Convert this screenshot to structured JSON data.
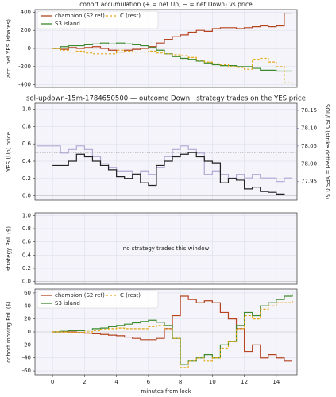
{
  "chart_data": [
    {
      "type": "line",
      "title": "cohort accumulation (+ = net Up, − = net Down) vs price",
      "ylabel": "acc. net YES (shares)",
      "ylim": [
        -430,
        430
      ],
      "yticks": [
        -400,
        -200,
        0,
        200,
        400
      ],
      "grid": true,
      "legend": "upper left",
      "x": [
        0,
        0.5,
        1,
        1.5,
        2,
        2.5,
        3,
        3.5,
        4,
        4.5,
        5,
        5.5,
        6,
        6.5,
        7,
        7.5,
        8,
        8.5,
        9,
        9.5,
        10,
        10.5,
        11,
        11.5,
        12,
        12.5,
        13,
        13.5,
        14,
        14.5,
        15
      ],
      "series": [
        {
          "name": "champion (S2 ref)",
          "color": "#b5441f",
          "linestyle": "solid",
          "values": [
            0,
            -10,
            10,
            0,
            10,
            20,
            0,
            -20,
            -40,
            -20,
            -10,
            0,
            20,
            60,
            100,
            130,
            150,
            180,
            200,
            190,
            220,
            230,
            230,
            220,
            230,
            240,
            250,
            240,
            250,
            390,
            390
          ]
        },
        {
          "name": "S3 island",
          "color": "#3d8a2e",
          "linestyle": "solid",
          "values": [
            0,
            20,
            30,
            30,
            40,
            50,
            60,
            50,
            60,
            50,
            40,
            30,
            10,
            -20,
            -60,
            -90,
            -110,
            -120,
            -140,
            -160,
            -180,
            -190,
            -190,
            -200,
            -200,
            -220,
            -240,
            -240,
            -250,
            -250,
            -250
          ]
        },
        {
          "name": "C (rest)",
          "color": "#e6a817",
          "linestyle": "dashed",
          "values": [
            0,
            -20,
            -40,
            -30,
            -50,
            -60,
            -60,
            -60,
            -20,
            -30,
            -40,
            -40,
            -30,
            -50,
            -60,
            -70,
            -80,
            -100,
            -130,
            -150,
            -170,
            -180,
            -200,
            -210,
            -230,
            -120,
            -110,
            -150,
            -200,
            -380,
            -390
          ]
        }
      ]
    },
    {
      "type": "line",
      "title": "sol-updown-15m-1784650500 — outcome Down · strategy trades on the YES price",
      "ylabel": "YES (Up) price",
      "y2label": "SOL/USD (strike dotted = YES 0.5)",
      "y2color": "#9b6bbf",
      "ylim": [
        -0.05,
        1.07
      ],
      "yticks": [
        {
          "value": 0,
          "label": "0.0"
        },
        0.2,
        0.4,
        0.6,
        0.8,
        {
          "value": 1,
          "label": "1.0"
        }
      ],
      "y2lim": [
        77.898,
        78.17
      ],
      "y2ticks": [
        77.95,
        {
          "value": 78.0,
          "label": "78.00"
        },
        78.05,
        {
          "value": 78.1,
          "label": "78.10"
        },
        78.15
      ],
      "hline": 0.5,
      "grid": true,
      "series": [
        {
          "name": "SOL/USD",
          "color": "#b3a7d6",
          "axis": "y2",
          "x": [
            -1,
            -0.5,
            0,
            0.5,
            1,
            1.5,
            2,
            2.5,
            3,
            3.5,
            4,
            4.5,
            5,
            5.5,
            6,
            6.5,
            7,
            7.5,
            8,
            8.5,
            9,
            9.5,
            10,
            10.5,
            11,
            11.5,
            12,
            12.5,
            13,
            13.5,
            14,
            14.5,
            15
          ],
          "values": [
            78.05,
            78.05,
            78.05,
            78.03,
            78.04,
            78.05,
            78.04,
            78.02,
            78.0,
            77.99,
            77.98,
            77.98,
            77.97,
            77.98,
            77.97,
            77.99,
            78.02,
            78.04,
            78.05,
            78.04,
            78.03,
            77.97,
            77.98,
            77.97,
            77.96,
            77.97,
            77.96,
            77.97,
            77.96,
            77.96,
            77.95,
            77.96,
            77.96
          ]
        },
        {
          "name": "YES price",
          "color": "#222222",
          "x": [
            0,
            0.5,
            1,
            1.5,
            2,
            2.5,
            3,
            3.5,
            4,
            4.5,
            5,
            5.5,
            6,
            6.5,
            7,
            7.5,
            8,
            8.5,
            9,
            9.5,
            10,
            10.5,
            11,
            11.5,
            12,
            12.5,
            13,
            13.5,
            14,
            14.5
          ],
          "values": [
            0.35,
            0.35,
            0.4,
            0.48,
            0.45,
            0.4,
            0.35,
            0.3,
            0.22,
            0.2,
            0.25,
            0.15,
            0.12,
            0.35,
            0.4,
            0.45,
            0.48,
            0.5,
            0.45,
            0.4,
            0.38,
            0.15,
            0.2,
            0.18,
            0.08,
            0.1,
            0.05,
            0.04,
            0.02,
            0.01
          ]
        }
      ]
    },
    {
      "type": "line",
      "ylabel": "strategy PnL ($)",
      "ylim": [
        -0.04,
        1.04
      ],
      "yticks": [
        {
          "value": 0,
          "label": "0.0"
        },
        0.2,
        0.4,
        0.6,
        0.8,
        {
          "value": 1,
          "label": "1.0"
        }
      ],
      "grid": true,
      "annotation": "no strategy trades this window",
      "series": []
    },
    {
      "type": "line",
      "ylabel": "cohort moving PnL ($)",
      "xlabel": "minutes from lock",
      "xlim": [
        -1.1,
        15.3
      ],
      "xticks": [
        0,
        2,
        4,
        6,
        8,
        10,
        12,
        14
      ],
      "ylim": [
        -66,
        66
      ],
      "yticks": [
        -60,
        -40,
        -20,
        0,
        20,
        40,
        60
      ],
      "grid": true,
      "legend": "upper left",
      "x": [
        0,
        0.5,
        1,
        1.5,
        2,
        2.5,
        3,
        3.5,
        4,
        4.5,
        5,
        5.5,
        6,
        6.5,
        7,
        7.5,
        8,
        8.5,
        9,
        9.5,
        10,
        10.5,
        11,
        11.5,
        12,
        12.5,
        13,
        13.5,
        14,
        14.5,
        15
      ],
      "series": [
        {
          "name": "champion (S2 ref)",
          "color": "#b5441f",
          "linestyle": "solid",
          "values": [
            0,
            0,
            0,
            -1,
            -2,
            -3,
            -4,
            -5,
            -6,
            -8,
            -10,
            -12,
            -12,
            -10,
            5,
            25,
            55,
            50,
            45,
            48,
            45,
            30,
            20,
            5,
            -30,
            -20,
            -40,
            -35,
            -40,
            -45,
            -45
          ]
        },
        {
          "name": "S3 island",
          "color": "#3d8a2e",
          "linestyle": "solid",
          "values": [
            0,
            1,
            2,
            2,
            3,
            5,
            6,
            8,
            10,
            12,
            14,
            16,
            18,
            15,
            10,
            -10,
            -50,
            -45,
            -40,
            -35,
            -40,
            -20,
            -15,
            10,
            30,
            25,
            40,
            45,
            50,
            55,
            58
          ]
        },
        {
          "name": "C (rest)",
          "color": "#e6a817",
          "linestyle": "dashed",
          "values": [
            0,
            0,
            -1,
            -1,
            0,
            2,
            4,
            5,
            6,
            5,
            5,
            5,
            8,
            10,
            5,
            -10,
            -55,
            -45,
            -40,
            -45,
            -40,
            -25,
            -15,
            5,
            25,
            20,
            35,
            40,
            45,
            45,
            48
          ]
        }
      ]
    }
  ]
}
